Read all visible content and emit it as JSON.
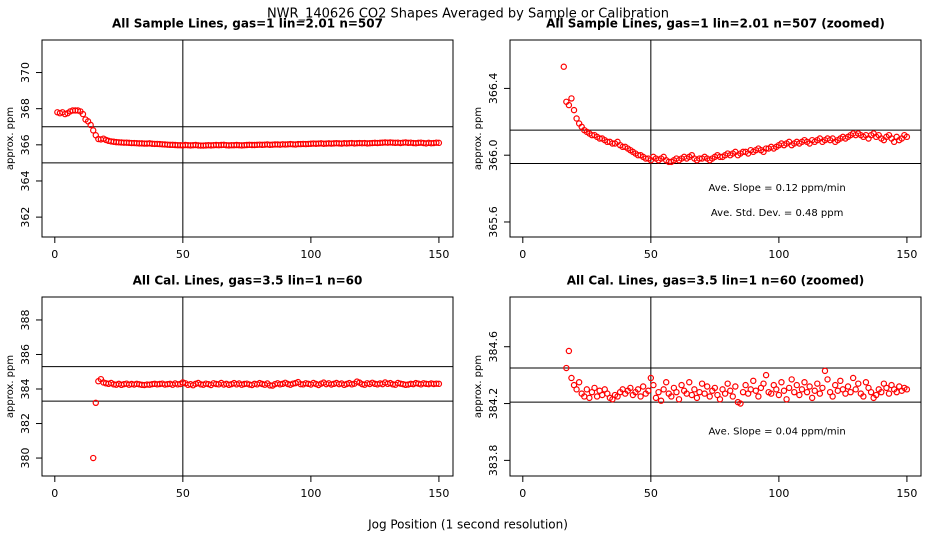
{
  "title": "NWR_140626  CO2 Shapes Averaged by Sample or Calibration",
  "x_label": "Jog Position (1 second resolution)",
  "chart_data": [
    {
      "type": "scatter",
      "title": "All Sample Lines, gas=1 lin=2.01 n=507",
      "y_label": "approx. ppm",
      "color": "#ff0000",
      "xlim": [
        -5,
        155.5
      ],
      "ylim": [
        360.9,
        371.8
      ],
      "xticks": [
        0,
        50,
        100,
        150
      ],
      "yticks": [
        362,
        364,
        366,
        368,
        370
      ],
      "vline": 50,
      "hlines": [
        367,
        365
      ],
      "annotations": [],
      "x": [
        1,
        2,
        3,
        4,
        5,
        6,
        7,
        8,
        9,
        10,
        11,
        12,
        13,
        14,
        15,
        16,
        17,
        18,
        19,
        20,
        21,
        22,
        23,
        24,
        25,
        26,
        27,
        28,
        29,
        30,
        31,
        32,
        33,
        34,
        35,
        36,
        37,
        38,
        39,
        40,
        41,
        42,
        43,
        44,
        45,
        46,
        47,
        48,
        49,
        50,
        51,
        52,
        53,
        54,
        55,
        56,
        57,
        58,
        59,
        60,
        61,
        62,
        63,
        64,
        65,
        66,
        67,
        68,
        69,
        70,
        71,
        72,
        73,
        74,
        75,
        76,
        77,
        78,
        79,
        80,
        81,
        82,
        83,
        84,
        85,
        86,
        87,
        88,
        89,
        90,
        91,
        92,
        93,
        94,
        95,
        96,
        97,
        98,
        99,
        100,
        101,
        102,
        103,
        104,
        105,
        106,
        107,
        108,
        109,
        110,
        111,
        112,
        113,
        114,
        115,
        116,
        117,
        118,
        119,
        120,
        121,
        122,
        123,
        124,
        125,
        126,
        127,
        128,
        129,
        130,
        131,
        132,
        133,
        134,
        135,
        136,
        137,
        138,
        139,
        140,
        141,
        142,
        143,
        144,
        145,
        146,
        147,
        148,
        149,
        150
      ],
      "values": [
        367.8,
        367.75,
        367.8,
        367.7,
        367.75,
        367.85,
        367.9,
        367.9,
        367.9,
        367.85,
        367.7,
        367.4,
        367.3,
        367.1,
        366.8,
        366.53,
        366.32,
        366.3,
        366.34,
        366.27,
        366.22,
        366.19,
        366.17,
        366.15,
        366.14,
        366.13,
        366.12,
        366.12,
        366.11,
        366.1,
        366.1,
        366.09,
        366.08,
        366.08,
        366.07,
        366.07,
        366.08,
        366.06,
        366.05,
        366.05,
        366.04,
        366.03,
        366.02,
        366.01,
        366.0,
        366.0,
        365.99,
        365.98,
        365.98,
        365.97,
        365.99,
        365.98,
        365.97,
        365.98,
        365.99,
        365.97,
        365.96,
        365.96,
        365.97,
        365.98,
        365.97,
        365.98,
        365.99,
        365.98,
        365.99,
        366.0,
        365.98,
        365.97,
        365.98,
        365.98,
        365.99,
        365.98,
        365.97,
        365.98,
        365.99,
        366.0,
        365.99,
        365.99,
        366.0,
        366.01,
        366.0,
        366.01,
        366.02,
        366.0,
        366.01,
        366.02,
        366.02,
        366.01,
        366.03,
        366.02,
        366.03,
        366.04,
        366.03,
        366.02,
        366.04,
        366.04,
        366.05,
        366.04,
        366.05,
        366.06,
        366.07,
        366.06,
        366.07,
        366.08,
        366.06,
        366.07,
        366.08,
        366.07,
        366.08,
        366.09,
        366.08,
        366.07,
        366.09,
        366.08,
        366.09,
        366.1,
        366.08,
        366.09,
        366.1,
        366.09,
        366.1,
        366.08,
        366.09,
        366.1,
        366.11,
        366.1,
        366.11,
        366.12,
        366.13,
        366.12,
        366.13,
        366.12,
        366.11,
        366.12,
        366.1,
        366.12,
        366.13,
        366.11,
        366.12,
        366.1,
        366.09,
        366.11,
        366.12,
        366.1,
        366.08,
        366.11,
        366.09,
        366.1,
        366.12,
        366.11
      ]
    },
    {
      "type": "scatter",
      "title": "All Sample Lines, gas=1 lin=2.01 n=507 (zoomed)",
      "y_label": "approx. ppm",
      "color": "#ff0000",
      "xlim": [
        -5,
        155.5
      ],
      "ylim": [
        365.51,
        366.69
      ],
      "xticks": [
        0,
        50,
        100,
        150
      ],
      "yticks": [
        365.6,
        {
          "value": 366,
          "label": "366.0"
        },
        366.4
      ],
      "vline": 50,
      "hlines": [
        366.15,
        365.95
      ],
      "annotations": [
        "Ave. Slope =  0.12  ppm/min",
        "Ave. Std. Dev. =  0.48  ppm"
      ],
      "x": [
        16,
        17,
        18,
        19,
        20,
        21,
        22,
        23,
        24,
        25,
        26,
        27,
        28,
        29,
        30,
        31,
        32,
        33,
        34,
        35,
        36,
        37,
        38,
        39,
        40,
        41,
        42,
        43,
        44,
        45,
        46,
        47,
        48,
        49,
        50,
        51,
        52,
        53,
        54,
        55,
        56,
        57,
        58,
        59,
        60,
        61,
        62,
        63,
        64,
        65,
        66,
        67,
        68,
        69,
        70,
        71,
        72,
        73,
        74,
        75,
        76,
        77,
        78,
        79,
        80,
        81,
        82,
        83,
        84,
        85,
        86,
        87,
        88,
        89,
        90,
        91,
        92,
        93,
        94,
        95,
        96,
        97,
        98,
        99,
        100,
        101,
        102,
        103,
        104,
        105,
        106,
        107,
        108,
        109,
        110,
        111,
        112,
        113,
        114,
        115,
        116,
        117,
        118,
        119,
        120,
        121,
        122,
        123,
        124,
        125,
        126,
        127,
        128,
        129,
        130,
        131,
        132,
        133,
        134,
        135,
        136,
        137,
        138,
        139,
        140,
        141,
        142,
        143,
        144,
        145,
        146,
        147,
        148,
        149,
        150
      ],
      "values": [
        366.53,
        366.32,
        366.3,
        366.34,
        366.27,
        366.22,
        366.19,
        366.17,
        366.15,
        366.14,
        366.13,
        366.12,
        366.12,
        366.11,
        366.1,
        366.1,
        366.09,
        366.08,
        366.08,
        366.07,
        366.07,
        366.08,
        366.06,
        366.05,
        366.05,
        366.04,
        366.03,
        366.02,
        366.01,
        366.0,
        366.0,
        365.99,
        365.98,
        365.98,
        365.97,
        365.99,
        365.98,
        365.97,
        365.98,
        365.99,
        365.97,
        365.96,
        365.96,
        365.97,
        365.98,
        365.97,
        365.98,
        365.99,
        365.98,
        365.99,
        366.0,
        365.98,
        365.97,
        365.98,
        365.98,
        365.99,
        365.98,
        365.97,
        365.98,
        365.99,
        366.0,
        365.99,
        365.99,
        366.0,
        366.01,
        366.0,
        366.01,
        366.02,
        366.0,
        366.01,
        366.02,
        366.02,
        366.01,
        366.03,
        366.02,
        366.03,
        366.04,
        366.03,
        366.02,
        366.04,
        366.04,
        366.05,
        366.04,
        366.05,
        366.06,
        366.07,
        366.06,
        366.07,
        366.08,
        366.06,
        366.07,
        366.08,
        366.07,
        366.08,
        366.09,
        366.08,
        366.07,
        366.09,
        366.08,
        366.09,
        366.1,
        366.08,
        366.09,
        366.1,
        366.09,
        366.1,
        366.08,
        366.09,
        366.1,
        366.11,
        366.1,
        366.11,
        366.12,
        366.13,
        366.12,
        366.13,
        366.12,
        366.11,
        366.12,
        366.1,
        366.12,
        366.13,
        366.11,
        366.12,
        366.1,
        366.09,
        366.11,
        366.12,
        366.1,
        366.08,
        366.11,
        366.09,
        366.1,
        366.12,
        366.11
      ]
    },
    {
      "type": "scatter",
      "title": "All Cal. Lines, gas=3.5 lin=1 n=60",
      "y_label": "approx. ppm",
      "color": "#ff0000",
      "xlim": [
        -5,
        155.5
      ],
      "ylim": [
        378.96,
        389.33
      ],
      "xticks": [
        0,
        50,
        100,
        150
      ],
      "yticks": [
        380,
        382,
        384,
        386,
        388
      ],
      "vline": 50,
      "hlines": [
        385.3,
        383.3
      ],
      "annotations": [],
      "x": [
        15,
        16,
        17,
        18,
        19,
        20,
        21,
        22,
        23,
        24,
        25,
        26,
        27,
        28,
        29,
        30,
        31,
        32,
        33,
        34,
        35,
        36,
        37,
        38,
        39,
        40,
        41,
        42,
        43,
        44,
        45,
        46,
        47,
        48,
        49,
        50,
        51,
        52,
        53,
        54,
        55,
        56,
        57,
        58,
        59,
        60,
        61,
        62,
        63,
        64,
        65,
        66,
        67,
        68,
        69,
        70,
        71,
        72,
        73,
        74,
        75,
        76,
        77,
        78,
        79,
        80,
        81,
        82,
        83,
        84,
        85,
        86,
        87,
        88,
        89,
        90,
        91,
        92,
        93,
        94,
        95,
        96,
        97,
        98,
        99,
        100,
        101,
        102,
        103,
        104,
        105,
        106,
        107,
        108,
        109,
        110,
        111,
        112,
        113,
        114,
        115,
        116,
        117,
        118,
        119,
        120,
        121,
        122,
        123,
        124,
        125,
        126,
        127,
        128,
        129,
        130,
        131,
        132,
        133,
        134,
        135,
        136,
        137,
        138,
        139,
        140,
        141,
        142,
        143,
        144,
        145,
        146,
        147,
        148,
        149,
        150
      ],
      "values": [
        380.0,
        383.2,
        384.45,
        384.57,
        384.38,
        384.33,
        384.3,
        384.35,
        384.27,
        384.25,
        384.3,
        384.24,
        384.28,
        384.31,
        384.25,
        384.29,
        384.26,
        384.3,
        384.27,
        384.24,
        384.23,
        384.26,
        384.25,
        384.28,
        384.3,
        384.27,
        384.29,
        384.31,
        384.26,
        384.28,
        384.3,
        384.25,
        384.32,
        384.27,
        384.29,
        384.38,
        384.33,
        384.24,
        384.28,
        384.22,
        384.3,
        384.35,
        384.27,
        384.25,
        384.31,
        384.28,
        384.23,
        384.33,
        384.29,
        384.27,
        384.35,
        384.26,
        384.3,
        384.24,
        384.28,
        384.34,
        384.27,
        384.32,
        384.25,
        384.29,
        384.31,
        384.26,
        384.23,
        384.3,
        384.27,
        384.34,
        384.29,
        384.25,
        384.32,
        384.21,
        384.2,
        384.28,
        384.33,
        384.27,
        384.3,
        384.36,
        384.29,
        384.25,
        384.31,
        384.34,
        384.4,
        384.28,
        384.27,
        384.33,
        384.3,
        384.26,
        384.35,
        384.29,
        384.23,
        384.31,
        384.37,
        384.28,
        384.33,
        384.26,
        384.3,
        384.35,
        384.28,
        384.32,
        384.24,
        384.29,
        384.34,
        384.27,
        384.31,
        384.43,
        384.37,
        384.28,
        384.25,
        384.33,
        384.29,
        384.36,
        384.3,
        384.27,
        384.32,
        384.28,
        384.38,
        384.3,
        384.34,
        384.27,
        384.25,
        384.35,
        384.31,
        384.28,
        384.24,
        384.26,
        384.3,
        384.28,
        384.34,
        384.31,
        384.27,
        384.33,
        384.3,
        384.28,
        384.32,
        384.29,
        384.31,
        384.3
      ]
    },
    {
      "type": "scatter",
      "title": "All Cal. Lines, gas=3.5 lin=1 n=60 (zoomed)",
      "y_label": "approx. ppm",
      "color": "#ff0000",
      "xlim": [
        -5,
        155.5
      ],
      "ylim": [
        383.69,
        384.95
      ],
      "xticks": [
        0,
        50,
        100,
        150
      ],
      "yticks": [
        383.8,
        384.2,
        384.6
      ],
      "vline": 50,
      "hlines": [
        384.45,
        384.21
      ],
      "annotations": [
        "Ave. Slope =  0.04  ppm/min"
      ],
      "x": [
        17,
        18,
        19,
        20,
        21,
        22,
        23,
        24,
        25,
        26,
        27,
        28,
        29,
        30,
        31,
        32,
        33,
        34,
        35,
        36,
        37,
        38,
        39,
        40,
        41,
        42,
        43,
        44,
        45,
        46,
        47,
        48,
        49,
        50,
        51,
        52,
        53,
        54,
        55,
        56,
        57,
        58,
        59,
        60,
        61,
        62,
        63,
        64,
        65,
        66,
        67,
        68,
        69,
        70,
        71,
        72,
        73,
        74,
        75,
        76,
        77,
        78,
        79,
        80,
        81,
        82,
        83,
        84,
        85,
        86,
        87,
        88,
        89,
        90,
        91,
        92,
        93,
        94,
        95,
        96,
        97,
        98,
        99,
        100,
        101,
        102,
        103,
        104,
        105,
        106,
        107,
        108,
        109,
        110,
        111,
        112,
        113,
        114,
        115,
        116,
        117,
        118,
        119,
        120,
        121,
        122,
        123,
        124,
        125,
        126,
        127,
        128,
        129,
        130,
        131,
        132,
        133,
        134,
        135,
        136,
        137,
        138,
        139,
        140,
        141,
        142,
        143,
        144,
        145,
        146,
        147,
        148,
        149,
        150
      ],
      "values": [
        384.45,
        384.57,
        384.38,
        384.33,
        384.3,
        384.35,
        384.27,
        384.25,
        384.3,
        384.24,
        384.28,
        384.31,
        384.25,
        384.29,
        384.26,
        384.3,
        384.27,
        384.24,
        384.23,
        384.26,
        384.25,
        384.28,
        384.3,
        384.27,
        384.29,
        384.31,
        384.26,
        384.28,
        384.3,
        384.25,
        384.32,
        384.27,
        384.29,
        384.38,
        384.33,
        384.24,
        384.28,
        384.22,
        384.3,
        384.35,
        384.27,
        384.25,
        384.31,
        384.28,
        384.23,
        384.33,
        384.29,
        384.27,
        384.35,
        384.26,
        384.3,
        384.24,
        384.28,
        384.34,
        384.27,
        384.32,
        384.25,
        384.29,
        384.31,
        384.26,
        384.23,
        384.3,
        384.27,
        384.34,
        384.29,
        384.25,
        384.32,
        384.21,
        384.2,
        384.28,
        384.33,
        384.27,
        384.3,
        384.36,
        384.29,
        384.25,
        384.31,
        384.34,
        384.4,
        384.28,
        384.27,
        384.33,
        384.3,
        384.26,
        384.35,
        384.29,
        384.23,
        384.31,
        384.37,
        384.28,
        384.33,
        384.26,
        384.3,
        384.35,
        384.28,
        384.32,
        384.24,
        384.29,
        384.34,
        384.27,
        384.31,
        384.43,
        384.37,
        384.28,
        384.25,
        384.33,
        384.29,
        384.36,
        384.3,
        384.27,
        384.32,
        384.28,
        384.38,
        384.3,
        384.34,
        384.27,
        384.25,
        384.35,
        384.31,
        384.28,
        384.24,
        384.26,
        384.3,
        384.28,
        384.34,
        384.31,
        384.27,
        384.33,
        384.3,
        384.28,
        384.32,
        384.29,
        384.31,
        384.3
      ]
    }
  ]
}
